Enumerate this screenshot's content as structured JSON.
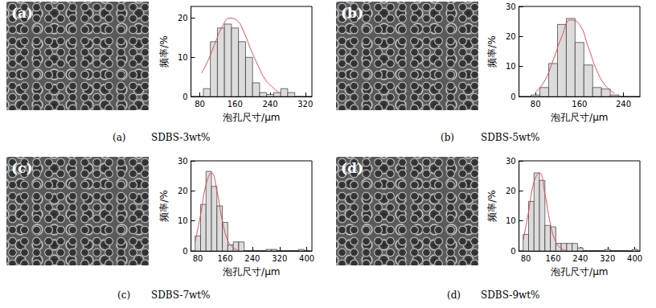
{
  "chart_data": [
    {
      "type": "histogram",
      "panel_label": "(a)",
      "title": "SDBS-3wt%",
      "x_label": "泡孔尺寸/μm",
      "y_label": "频率/%",
      "bins": [
        88,
        104,
        120,
        136,
        152,
        168,
        184,
        200,
        216,
        232,
        248,
        264,
        280,
        296
      ],
      "counts": [
        2,
        14,
        17.5,
        18.5,
        17.5,
        14,
        10,
        3.5,
        1,
        0.5,
        1,
        2,
        1
      ],
      "fit": {
        "color": "#e05050",
        "x": [
          84,
          100,
          116,
          132,
          148,
          164,
          180,
          196,
          212,
          228,
          244,
          260
        ],
        "values": [
          6,
          9.5,
          14,
          18,
          20,
          19.5,
          16.5,
          12,
          8,
          4.5,
          2.5,
          1
        ]
      },
      "color": "#dcdcdc",
      "xlim": [
        60,
        335
      ],
      "xticks": [
        80,
        160,
        240,
        320
      ],
      "ylim": [
        0,
        23
      ],
      "yticks": [
        0,
        10,
        20
      ]
    },
    {
      "type": "histogram",
      "panel_label": "(b)",
      "title": "SDBS-5wt%",
      "x_label": "泡孔尺寸/μm",
      "y_label": "频率/%",
      "bins": [
        72,
        88,
        104,
        120,
        136,
        152,
        168,
        184,
        200,
        216,
        232
      ],
      "counts": [
        0.5,
        3,
        11,
        24,
        26,
        18,
        10.5,
        3,
        2.5,
        0.5
      ],
      "fit": {
        "color": "#e05050",
        "x": [
          80,
          96,
          112,
          128,
          144,
          160,
          176,
          192,
          208,
          224
        ],
        "values": [
          1.5,
          5,
          12,
          20,
          25.5,
          24,
          16.5,
          8.5,
          3.5,
          1
        ]
      },
      "color": "#dcdcdc",
      "xlim": [
        50,
        270
      ],
      "xticks": [
        80,
        160,
        240
      ],
      "ylim": [
        0,
        30
      ],
      "yticks": [
        0,
        10,
        20,
        30
      ]
    },
    {
      "type": "histogram",
      "panel_label": "(c)",
      "title": "SDBS-7wt%",
      "x_label": "泡孔尺寸/μm",
      "y_label": "频率/%",
      "bins": [
        72,
        88,
        104,
        120,
        136,
        152,
        168,
        184,
        200,
        216,
        232,
        248,
        264,
        280,
        296,
        312,
        328,
        344,
        360,
        376,
        392,
        408
      ],
      "counts": [
        5,
        15.5,
        26.5,
        21.5,
        15,
        9.5,
        2,
        3,
        3,
        0,
        0,
        0,
        0,
        0.5,
        0.5,
        0,
        0,
        0,
        0,
        0.5,
        0
      ],
      "fit": {
        "color": "#e05050",
        "x": [
          72,
          88,
          104,
          120,
          136,
          152,
          168,
          184,
          200
        ],
        "values": [
          3,
          12,
          22,
          26,
          20,
          10,
          3.5,
          1,
          0.2
        ]
      },
      "color": "#dcdcdc",
      "xlim": [
        60,
        415
      ],
      "xticks": [
        80,
        160,
        240,
        320,
        400
      ],
      "ylim": [
        0,
        30
      ],
      "yticks": [
        0,
        10,
        20,
        30
      ]
    },
    {
      "type": "histogram",
      "panel_label": "(d)",
      "title": "SDBS-9wt%",
      "x_label": "泡孔尺寸/μm",
      "y_label": "频率/%",
      "bins": [
        72,
        88,
        104,
        120,
        136,
        152,
        168,
        184,
        200,
        216,
        232,
        248,
        264,
        280,
        296,
        312,
        328,
        344,
        360,
        376,
        392,
        408
      ],
      "counts": [
        5.5,
        16.5,
        26,
        23.5,
        8.5,
        8,
        2.5,
        2.5,
        2.5,
        2.5,
        1,
        0,
        0,
        0,
        0,
        0.5,
        0,
        0,
        0,
        0,
        0.5
      ],
      "fit": {
        "color": "#e05050",
        "x": [
          72,
          88,
          104,
          120,
          136,
          152,
          168,
          184,
          200
        ],
        "values": [
          3.5,
          13,
          23,
          26,
          19,
          9,
          3,
          0.8,
          0.2
        ]
      },
      "color": "#dcdcdc",
      "xlim": [
        60,
        415
      ],
      "xticks": [
        80,
        160,
        240,
        320,
        400
      ],
      "ylim": [
        0,
        30
      ],
      "yticks": [
        0,
        10,
        20,
        30
      ]
    }
  ]
}
